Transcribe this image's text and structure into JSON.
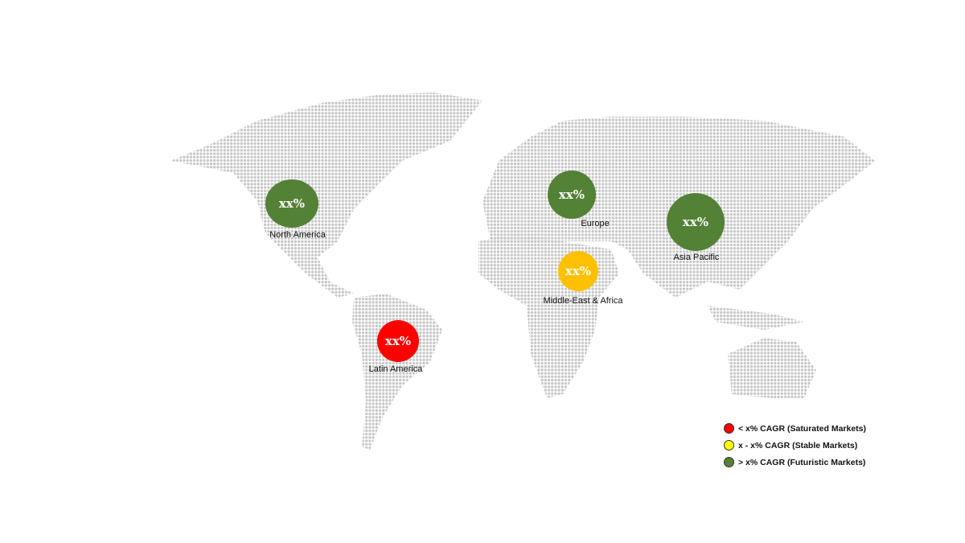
{
  "regions": [
    {
      "name": "North America",
      "value": "xx%",
      "color": "#538135"
    },
    {
      "name": "Europe",
      "value": "xx%",
      "color": "#538135"
    },
    {
      "name": "Asia Pacific",
      "value": "xx%",
      "color": "#538135"
    },
    {
      "name": "Middle-East & Africa",
      "value": "xx%",
      "color": "#FFC000"
    },
    {
      "name": "Latin America",
      "value": "xx%",
      "color": "#FF0000"
    }
  ],
  "legend": [
    {
      "label": "< x% CAGR (Saturated Markets)",
      "color": "#FF0000"
    },
    {
      "label": "x - x% CAGR (Stable Markets)",
      "color": "#FFFF00"
    },
    {
      "label": "> x% CAGR (Futuristic Markets)",
      "color": "#538135"
    }
  ],
  "map_dot_color": "#c4c4c4"
}
